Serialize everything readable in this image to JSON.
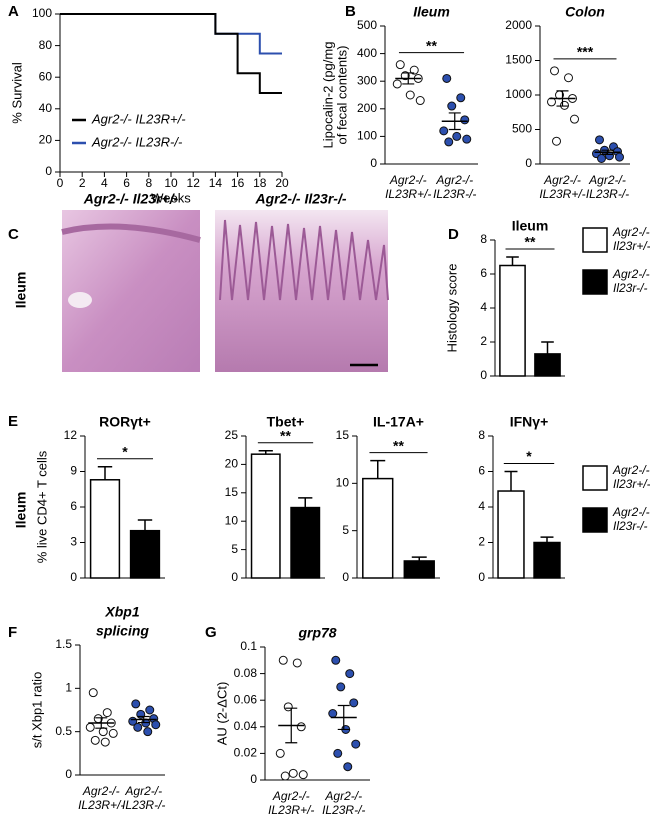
{
  "figure": {
    "panel_labels": [
      "A",
      "B",
      "C",
      "D",
      "E",
      "F",
      "G"
    ],
    "histology": {
      "labels": [
        "Agr2-/-  Il23r+/-",
        "Agr2-/-  Il23r-/-"
      ],
      "side_label": "Ileum"
    },
    "row_e_side_label": "Ileum"
  },
  "chart_data": [
    {
      "type": "line",
      "xlabel": "Weeks",
      "ylabel": [
        "% Survival"
      ],
      "xlim": [
        0,
        20
      ],
      "xticks": [
        0,
        2,
        4,
        6,
        8,
        10,
        12,
        14,
        16,
        18,
        20
      ],
      "ylim": [
        0,
        100
      ],
      "yticks": [
        0,
        20,
        40,
        60,
        80,
        100
      ],
      "series": [
        {
          "name": "Agr2-/- IL23R+/-",
          "color": "#000000",
          "x": [
            0,
            14,
            14,
            16,
            16,
            18,
            18,
            20
          ],
          "values": [
            100,
            100,
            87.5,
            87.5,
            62.5,
            62.5,
            50,
            50
          ]
        },
        {
          "name": "Agr2-/- IL23R-/-",
          "color": "#2c4fae",
          "x": [
            0,
            14,
            14,
            18,
            18,
            20
          ],
          "values": [
            100,
            100,
            87.5,
            87.5,
            75,
            75
          ]
        }
      ]
    },
    {
      "type": "dot",
      "title": [
        "Ileum"
      ],
      "ylabel": [
        "Lipocalin-2 (pg/mg",
        "of fecal contents)"
      ],
      "ylim": [
        0,
        500
      ],
      "yticks": [
        0,
        100,
        200,
        300,
        400,
        500
      ],
      "categories": [
        [
          "Agr2-/-",
          "IL23R+/-"
        ],
        [
          "Agr2-/-",
          "IL23R-/-"
        ]
      ],
      "fills": [
        "#ffffff",
        "#2c4fae"
      ],
      "points": [
        [
          360,
          340,
          320,
          310,
          290,
          250,
          230
        ],
        [
          310,
          240,
          210,
          160,
          120,
          100,
          90,
          80
        ]
      ],
      "means": [
        310,
        155
      ],
      "errors": [
        20,
        30
      ],
      "significance": "**"
    },
    {
      "type": "dot",
      "title": [
        "Colon"
      ],
      "ylim": [
        0,
        2000
      ],
      "yticks": [
        0,
        500,
        1000,
        1500,
        2000
      ],
      "categories": [
        [
          "Agr2-/-",
          "IL23R+/-"
        ],
        [
          "Agr2-/-",
          "IL23R-/-"
        ]
      ],
      "fills": [
        "#ffffff",
        "#2c4fae"
      ],
      "points": [
        [
          1350,
          1250,
          1000,
          950,
          900,
          850,
          650,
          330
        ],
        [
          350,
          250,
          200,
          180,
          150,
          120,
          100,
          80
        ]
      ],
      "means": [
        950,
        170
      ],
      "errors": [
        110,
        30
      ],
      "significance": "***"
    },
    {
      "type": "bar",
      "title": [
        "Ileum"
      ],
      "ylabel": [
        "Histology score"
      ],
      "ylim": [
        0,
        8
      ],
      "yticks": [
        0,
        2,
        4,
        6,
        8
      ],
      "colors": [
        "#ffffff",
        "#000000"
      ],
      "values": [
        6.5,
        1.3
      ],
      "errors": [
        0.5,
        0.7
      ],
      "significance": "**",
      "legend": [
        [
          "Agr2-/-",
          "Il23r+/-"
        ],
        [
          "Agr2-/-",
          "Il23r-/-"
        ]
      ]
    },
    {
      "type": "bar",
      "title": [
        "RORγt+"
      ],
      "ylabel": [
        "% live CD4+ T cells"
      ],
      "ylim": [
        0,
        12
      ],
      "yticks": [
        0,
        3,
        6,
        9,
        12
      ],
      "colors": [
        "#ffffff",
        "#000000"
      ],
      "values": [
        8.3,
        4.0
      ],
      "errors": [
        1.1,
        0.9
      ],
      "significance": "*"
    },
    {
      "type": "bar",
      "title": [
        "Tbet+"
      ],
      "ylim": [
        0,
        25
      ],
      "yticks": [
        0,
        5,
        10,
        15,
        20,
        25
      ],
      "colors": [
        "#ffffff",
        "#000000"
      ],
      "values": [
        21.8,
        12.4
      ],
      "errors": [
        0.6,
        1.7
      ],
      "significance": "**"
    },
    {
      "type": "bar",
      "title": [
        "IL-17A+"
      ],
      "ylim": [
        0,
        15
      ],
      "yticks": [
        0,
        5,
        10,
        15
      ],
      "colors": [
        "#ffffff",
        "#000000"
      ],
      "values": [
        10.5,
        1.8
      ],
      "errors": [
        1.9,
        0.4
      ],
      "significance": "**"
    },
    {
      "type": "bar",
      "title": [
        "IFNγ+"
      ],
      "ylim": [
        0,
        8
      ],
      "yticks": [
        0,
        2,
        4,
        6,
        8
      ],
      "colors": [
        "#ffffff",
        "#000000"
      ],
      "values": [
        4.9,
        2.0
      ],
      "errors": [
        1.1,
        0.3
      ],
      "significance": "*",
      "legend": [
        [
          "Agr2-/-",
          "Il23r+/-"
        ],
        [
          "Agr2-/-",
          "Il23r-/-"
        ]
      ]
    },
    {
      "type": "dot",
      "title": [
        "Xbp1",
        "splicing"
      ],
      "ylabel": [
        "s/t Xbp1 ratio"
      ],
      "ylim": [
        0,
        1.5
      ],
      "yticks": [
        0,
        0.5,
        1,
        1.5
      ],
      "categories": [
        [
          "Agr2-/-",
          "IL23R+/-"
        ],
        [
          "Agr2-/-",
          "IL23R-/-"
        ]
      ],
      "fills": [
        "#ffffff",
        "#2c4fae"
      ],
      "points": [
        [
          0.95,
          0.72,
          0.65,
          0.6,
          0.55,
          0.5,
          0.48,
          0.4,
          0.38
        ],
        [
          0.82,
          0.75,
          0.7,
          0.65,
          0.62,
          0.6,
          0.58,
          0.55,
          0.5
        ]
      ],
      "means": [
        0.6,
        0.64
      ],
      "errors": [
        0.06,
        0.035
      ]
    },
    {
      "type": "dot",
      "title": [
        "grp78"
      ],
      "ylabel": [
        "AU (2-ΔCt)"
      ],
      "ylim": [
        0,
        0.1
      ],
      "yticks": [
        0,
        0.02,
        0.04,
        0.06,
        0.08,
        0.1
      ],
      "categories": [
        [
          "Agr2-/-",
          "IL23R+/-"
        ],
        [
          "Agr2-/-",
          "IL23R-/-"
        ]
      ],
      "fills": [
        "#ffffff",
        "#2c4fae"
      ],
      "points": [
        [
          0.09,
          0.088,
          0.055,
          0.04,
          0.02,
          0.005,
          0.004,
          0.003
        ],
        [
          0.09,
          0.08,
          0.07,
          0.058,
          0.05,
          0.038,
          0.027,
          0.02,
          0.01
        ]
      ],
      "means": [
        0.041,
        0.047
      ],
      "errors": [
        0.013,
        0.009
      ]
    }
  ]
}
